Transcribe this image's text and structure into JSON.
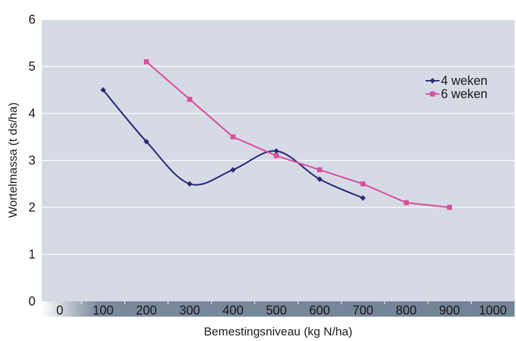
{
  "chart_data": {
    "type": "line",
    "title": "",
    "xlabel": "Bemestingsniveau (kg N/ha)",
    "ylabel": "Wortelmassa (t ds/ha)",
    "xlim": [
      0,
      1000
    ],
    "ylim": [
      0,
      6
    ],
    "xticks": [
      0,
      100,
      200,
      300,
      400,
      500,
      600,
      700,
      800,
      900,
      1000
    ],
    "yticks": [
      0,
      1,
      2,
      3,
      4,
      5,
      6
    ],
    "xtick_labels": [
      "0",
      "100",
      "200",
      "300",
      "400",
      "500",
      "600",
      "700",
      "800",
      "900",
      "1000"
    ],
    "ytick_labels": [
      "0",
      "1",
      "2",
      "3",
      "4",
      "5",
      "6"
    ],
    "grid": "horizontal",
    "legend_position": "right",
    "colors": {
      "plot_background": "#d5dae5",
      "gridline": "#ffffff",
      "axis_band": "#6b7d92"
    },
    "series": [
      {
        "name": "4 weken",
        "color": "#2b2a78",
        "marker": "diamond",
        "smooth": true,
        "x": [
          100,
          200,
          300,
          400,
          500,
          600,
          700
        ],
        "y": [
          4.5,
          3.4,
          2.5,
          2.8,
          3.2,
          2.6,
          2.2
        ]
      },
      {
        "name": "6 weken",
        "color": "#d94f9c",
        "marker": "square",
        "smooth": false,
        "x": [
          200,
          300,
          400,
          500,
          600,
          700,
          800,
          900
        ],
        "y": [
          5.1,
          4.3,
          3.5,
          3.1,
          2.8,
          2.5,
          2.1,
          2.0
        ]
      }
    ]
  }
}
